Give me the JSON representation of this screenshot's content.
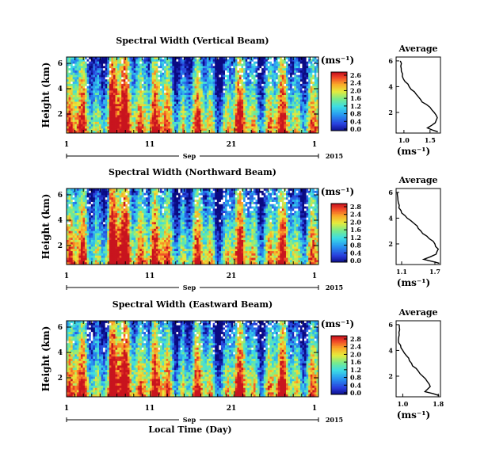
{
  "chart_data": [
    {
      "type": "heatmap",
      "title": "Spectral Width (Vertical Beam)",
      "ylabel": "Height (km)",
      "yticks": [
        "6",
        "4",
        "2"
      ],
      "xticks": [
        "1",
        "11",
        "21",
        "1"
      ],
      "month": "Sep",
      "year": "2015",
      "colorbar_unit": "(ms⁻¹)",
      "colorbar_ticks": [
        "2.6",
        "2.4",
        "2.0",
        "1.6",
        "1.2",
        "0.8",
        "0.4",
        "0.0"
      ],
      "avg_title": "Average",
      "avg_yticks": [
        "6",
        "4",
        "2"
      ],
      "avg_xticks": [
        "1.0",
        "1.5"
      ],
      "avg_xlabel": "(ms⁻¹)",
      "avg_xlim": [
        0.85,
        1.7
      ],
      "avg_profile": {
        "height": [
          0.5,
          0.8,
          1.2,
          1.6,
          2.0,
          2.4,
          2.8,
          3.2,
          3.6,
          4.0,
          4.4,
          4.8,
          5.2,
          5.6,
          6.0
        ],
        "value": [
          1.65,
          1.45,
          1.6,
          1.64,
          1.58,
          1.5,
          1.35,
          1.28,
          1.2,
          1.1,
          1.02,
          0.97,
          0.95,
          0.94,
          0.93
        ]
      }
    },
    {
      "type": "heatmap",
      "title": "Spectral Width (Northward Beam)",
      "ylabel": "Height (km)",
      "yticks": [
        "6",
        "4",
        "2"
      ],
      "xticks": [
        "1",
        "11",
        "21",
        "1"
      ],
      "month": "Sep",
      "year": "2015",
      "colorbar_unit": "(ms⁻¹)",
      "colorbar_ticks": [
        "2.8",
        "2.4",
        "2.0",
        "1.6",
        "1.2",
        "0.8",
        "0.4",
        "0.0"
      ],
      "avg_title": "Average",
      "avg_yticks": [
        "6",
        "4",
        "2"
      ],
      "avg_xticks": [
        "1.1",
        "1.7"
      ],
      "avg_xlabel": "(ms⁻¹)",
      "avg_xlim": [
        1.0,
        1.8
      ],
      "avg_profile": {
        "height": [
          0.5,
          0.8,
          1.2,
          1.6,
          2.0,
          2.4,
          2.8,
          3.2,
          3.6,
          4.0,
          4.4,
          4.8,
          5.2,
          5.6,
          6.0
        ],
        "value": [
          1.78,
          1.5,
          1.72,
          1.76,
          1.7,
          1.6,
          1.48,
          1.4,
          1.32,
          1.2,
          1.1,
          1.05,
          1.04,
          1.03,
          1.02
        ]
      }
    },
    {
      "type": "heatmap",
      "title": "Spectral Width (Eastward Beam)",
      "ylabel": "Height (km)",
      "yticks": [
        "6",
        "4",
        "2"
      ],
      "xticks": [
        "1",
        "11",
        "21",
        "1"
      ],
      "month": "Sep",
      "year": "2015",
      "xlabel": "Local Time (Day)",
      "colorbar_unit": "(ms⁻¹)",
      "colorbar_ticks": [
        "2.8",
        "2.4",
        "2.0",
        "1.6",
        "1.2",
        "0.8",
        "0.4",
        "0.0"
      ],
      "avg_title": "Average",
      "avg_yticks": [
        "6",
        "4",
        "2"
      ],
      "avg_xticks": [
        "1.0",
        "1.8"
      ],
      "avg_xlabel": "(ms⁻¹)",
      "avg_xlim": [
        0.85,
        1.85
      ],
      "avg_profile": {
        "height": [
          0.5,
          0.8,
          1.2,
          1.6,
          2.0,
          2.4,
          2.8,
          3.2,
          3.6,
          4.0,
          4.4,
          4.8,
          5.2,
          5.6,
          6.0
        ],
        "value": [
          1.82,
          1.5,
          1.62,
          1.55,
          1.45,
          1.35,
          1.22,
          1.15,
          1.08,
          1.0,
          0.95,
          0.9,
          0.92,
          0.93,
          0.92
        ]
      }
    }
  ]
}
